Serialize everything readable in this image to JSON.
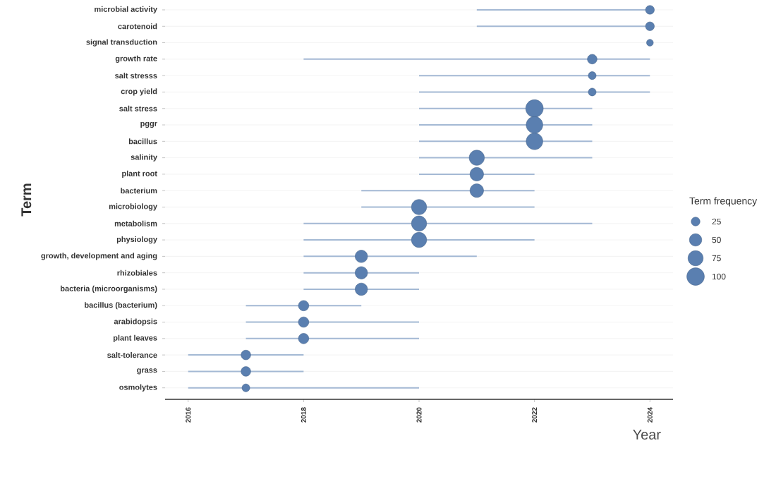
{
  "chart_data": {
    "type": "bubble",
    "orientation": "horizontal",
    "xlabel": "Year",
    "ylabel": "Term",
    "legend_title": "Term frequency",
    "color": "#5a7fb0",
    "categories": [
      "microbial activity",
      "carotenoid",
      "signal transduction",
      "growth rate",
      "salt stresss",
      "crop yield",
      "salt stress",
      "pggr",
      "bacillus",
      "salinity",
      "plant root",
      "bacterium",
      "microbiology",
      "metabolism",
      "physiology",
      "growth, development and aging",
      "rhizobiales",
      "bacteria (microorganisms)",
      "bacillus (bacterium)",
      "arabidopsis",
      "plant leaves",
      "salt-tolerance",
      "grass",
      "osmolytes"
    ],
    "values": [
      2024,
      2024,
      2024,
      2023,
      2023,
      2023,
      2022,
      2022,
      2022,
      2021,
      2021,
      2021,
      2020,
      2020,
      2020,
      2019,
      2019,
      2019,
      2018,
      2018,
      2018,
      2017,
      2017,
      2017
    ],
    "errors": [
      [
        2021,
        2024
      ],
      [
        2021,
        2024
      ],
      [
        2024,
        2024
      ],
      [
        2018,
        2024
      ],
      [
        2020,
        2024
      ],
      [
        2020,
        2024
      ],
      [
        2020,
        2023
      ],
      [
        2020,
        2023
      ],
      [
        2020,
        2023
      ],
      [
        2020,
        2023
      ],
      [
        2020,
        2022
      ],
      [
        2019,
        2022
      ],
      [
        2019,
        2022
      ],
      [
        2018,
        2023
      ],
      [
        2018,
        2022
      ],
      [
        2018,
        2021
      ],
      [
        2018,
        2020
      ],
      [
        2018,
        2020
      ],
      [
        2017,
        2019
      ],
      [
        2017,
        2020
      ],
      [
        2017,
        2020
      ],
      [
        2016,
        2018
      ],
      [
        2016,
        2018
      ],
      [
        2016,
        2020
      ]
    ],
    "sizes": [
      25,
      25,
      15,
      30,
      20,
      20,
      100,
      90,
      90,
      75,
      60,
      60,
      75,
      75,
      75,
      50,
      50,
      50,
      35,
      35,
      35,
      30,
      30,
      20
    ],
    "size_legend": [
      25,
      50,
      75,
      100
    ],
    "xlim": [
      2015.6,
      2024.4
    ],
    "xticks": [
      2016,
      2018,
      2020,
      2022,
      2024
    ],
    "grid": "y"
  }
}
